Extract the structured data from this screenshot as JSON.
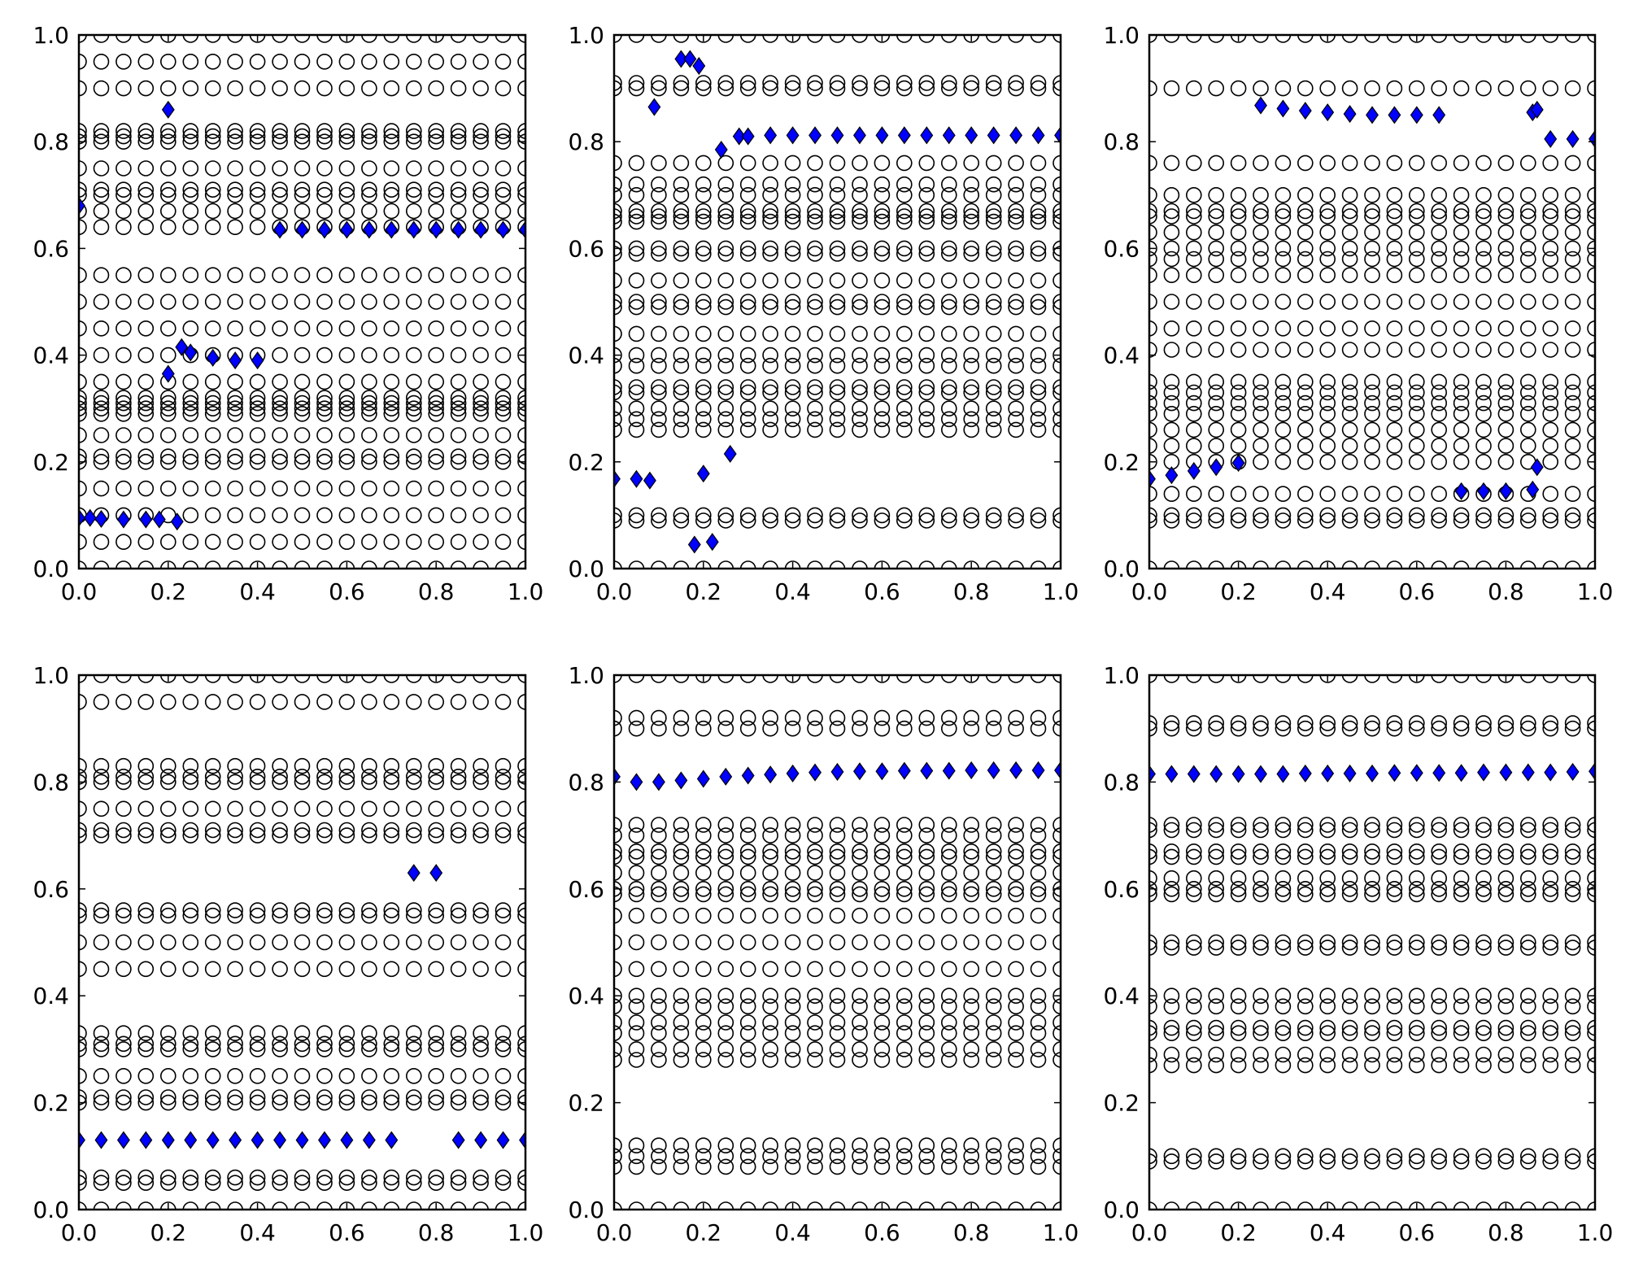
{
  "colors": {
    "hollow_marker_edge": "#000000",
    "diamond_fill": "#0000ff",
    "diamond_edge": "#000000",
    "axes": "#000000",
    "background": "#ffffff"
  },
  "chart_data": [
    {
      "type": "scatter",
      "panel": "top-left",
      "xlim": [
        0,
        1
      ],
      "ylim": [
        0,
        1
      ],
      "x_tick_labels": [
        "0.0",
        "0.2",
        "0.4",
        "0.6",
        "0.8",
        "1.0"
      ],
      "y_tick_labels": [
        "0.0",
        "0.2",
        "0.4",
        "0.6",
        "0.8",
        "1.0"
      ],
      "grid": false,
      "circle_x": [
        0.0,
        0.05,
        0.1,
        0.15,
        0.2,
        0.25,
        0.3,
        0.35,
        0.4,
        0.45,
        0.5,
        0.55,
        0.6,
        0.65,
        0.7,
        0.75,
        0.8,
        0.85,
        0.9,
        0.95,
        1.0
      ],
      "circle_y": [
        0.0,
        0.05,
        0.1,
        0.15,
        0.2,
        0.21,
        0.25,
        0.29,
        0.3,
        0.31,
        0.32,
        0.35,
        0.4,
        0.45,
        0.5,
        0.55,
        0.64,
        0.67,
        0.7,
        0.71,
        0.75,
        0.8,
        0.81,
        0.82,
        0.9,
        0.95,
        1.0
      ],
      "diamonds": [
        {
          "x": 0.0,
          "y": 0.68
        },
        {
          "x": 0.0,
          "y": 0.095
        },
        {
          "x": 0.025,
          "y": 0.095
        },
        {
          "x": 0.05,
          "y": 0.093
        },
        {
          "x": 0.1,
          "y": 0.092
        },
        {
          "x": 0.15,
          "y": 0.092
        },
        {
          "x": 0.18,
          "y": 0.092
        },
        {
          "x": 0.22,
          "y": 0.088
        },
        {
          "x": 0.2,
          "y": 0.365
        },
        {
          "x": 0.23,
          "y": 0.415
        },
        {
          "x": 0.25,
          "y": 0.405
        },
        {
          "x": 0.3,
          "y": 0.395
        },
        {
          "x": 0.35,
          "y": 0.39
        },
        {
          "x": 0.4,
          "y": 0.39
        },
        {
          "x": 0.2,
          "y": 0.86
        },
        {
          "x": 0.45,
          "y": 0.635
        },
        {
          "x": 0.5,
          "y": 0.635
        },
        {
          "x": 0.55,
          "y": 0.635
        },
        {
          "x": 0.6,
          "y": 0.635
        },
        {
          "x": 0.65,
          "y": 0.635
        },
        {
          "x": 0.7,
          "y": 0.635
        },
        {
          "x": 0.75,
          "y": 0.635
        },
        {
          "x": 0.8,
          "y": 0.635
        },
        {
          "x": 0.85,
          "y": 0.635
        },
        {
          "x": 0.9,
          "y": 0.635
        },
        {
          "x": 0.95,
          "y": 0.635
        },
        {
          "x": 1.0,
          "y": 0.635
        }
      ]
    },
    {
      "type": "scatter",
      "panel": "top-middle",
      "xlim": [
        0,
        1
      ],
      "ylim": [
        0,
        1
      ],
      "x_tick_labels": [
        "0.0",
        "0.2",
        "0.4",
        "0.6",
        "0.8",
        "1.0"
      ],
      "y_tick_labels": [
        "0.0",
        "0.2",
        "0.4",
        "0.6",
        "0.8",
        "1.0"
      ],
      "grid": false,
      "circle_x": [
        0.0,
        0.05,
        0.1,
        0.15,
        0.2,
        0.25,
        0.3,
        0.35,
        0.4,
        0.45,
        0.5,
        0.55,
        0.6,
        0.65,
        0.7,
        0.75,
        0.8,
        0.85,
        0.9,
        0.95,
        1.0
      ],
      "circle_y": [
        0.0,
        0.09,
        0.1,
        0.26,
        0.28,
        0.3,
        0.33,
        0.34,
        0.38,
        0.4,
        0.44,
        0.49,
        0.5,
        0.54,
        0.59,
        0.6,
        0.65,
        0.66,
        0.67,
        0.7,
        0.72,
        0.76,
        0.9,
        0.91,
        1.0
      ],
      "diamonds": [
        {
          "x": 0.0,
          "y": 0.168
        },
        {
          "x": 0.05,
          "y": 0.168
        },
        {
          "x": 0.08,
          "y": 0.165
        },
        {
          "x": 0.09,
          "y": 0.865
        },
        {
          "x": 0.15,
          "y": 0.955
        },
        {
          "x": 0.17,
          "y": 0.955
        },
        {
          "x": 0.19,
          "y": 0.942
        },
        {
          "x": 0.2,
          "y": 0.178
        },
        {
          "x": 0.18,
          "y": 0.045
        },
        {
          "x": 0.22,
          "y": 0.05
        },
        {
          "x": 0.26,
          "y": 0.215
        },
        {
          "x": 0.24,
          "y": 0.785
        },
        {
          "x": 0.28,
          "y": 0.81
        },
        {
          "x": 0.3,
          "y": 0.81
        },
        {
          "x": 0.35,
          "y": 0.812
        },
        {
          "x": 0.4,
          "y": 0.812
        },
        {
          "x": 0.45,
          "y": 0.812
        },
        {
          "x": 0.5,
          "y": 0.812
        },
        {
          "x": 0.55,
          "y": 0.812
        },
        {
          "x": 0.6,
          "y": 0.812
        },
        {
          "x": 0.65,
          "y": 0.812
        },
        {
          "x": 0.7,
          "y": 0.812
        },
        {
          "x": 0.75,
          "y": 0.812
        },
        {
          "x": 0.8,
          "y": 0.812
        },
        {
          "x": 0.85,
          "y": 0.812
        },
        {
          "x": 0.9,
          "y": 0.812
        },
        {
          "x": 0.95,
          "y": 0.812
        },
        {
          "x": 1.0,
          "y": 0.812
        }
      ]
    },
    {
      "type": "scatter",
      "panel": "top-right",
      "xlim": [
        0,
        1
      ],
      "ylim": [
        0,
        1
      ],
      "x_tick_labels": [
        "0.0",
        "0.2",
        "0.4",
        "0.6",
        "0.8",
        "1.0"
      ],
      "y_tick_labels": [
        "0.0",
        "0.2",
        "0.4",
        "0.6",
        "0.8",
        "1.0"
      ],
      "grid": false,
      "circle_x": [
        0.0,
        0.05,
        0.1,
        0.15,
        0.2,
        0.25,
        0.3,
        0.35,
        0.4,
        0.45,
        0.5,
        0.55,
        0.6,
        0.65,
        0.7,
        0.75,
        0.8,
        0.85,
        0.9,
        0.95,
        1.0
      ],
      "circle_y": [
        0.0,
        0.09,
        0.1,
        0.14,
        0.2,
        0.23,
        0.26,
        0.29,
        0.31,
        0.33,
        0.35,
        0.41,
        0.45,
        0.5,
        0.55,
        0.58,
        0.6,
        0.63,
        0.66,
        0.67,
        0.7,
        0.76,
        0.9,
        1.0
      ],
      "diamonds": [
        {
          "x": 0.0,
          "y": 0.168
        },
        {
          "x": 0.05,
          "y": 0.175
        },
        {
          "x": 0.1,
          "y": 0.183
        },
        {
          "x": 0.15,
          "y": 0.19
        },
        {
          "x": 0.2,
          "y": 0.198
        },
        {
          "x": 0.25,
          "y": 0.868
        },
        {
          "x": 0.3,
          "y": 0.862
        },
        {
          "x": 0.35,
          "y": 0.858
        },
        {
          "x": 0.4,
          "y": 0.855
        },
        {
          "x": 0.45,
          "y": 0.852
        },
        {
          "x": 0.5,
          "y": 0.85
        },
        {
          "x": 0.55,
          "y": 0.85
        },
        {
          "x": 0.6,
          "y": 0.85
        },
        {
          "x": 0.65,
          "y": 0.85
        },
        {
          "x": 0.7,
          "y": 0.145
        },
        {
          "x": 0.75,
          "y": 0.145
        },
        {
          "x": 0.8,
          "y": 0.145
        },
        {
          "x": 0.86,
          "y": 0.148
        },
        {
          "x": 0.87,
          "y": 0.19
        },
        {
          "x": 0.86,
          "y": 0.855
        },
        {
          "x": 0.87,
          "y": 0.86
        },
        {
          "x": 0.9,
          "y": 0.805
        },
        {
          "x": 0.95,
          "y": 0.805
        },
        {
          "x": 1.0,
          "y": 0.805
        }
      ]
    },
    {
      "type": "scatter",
      "panel": "bottom-left",
      "xlim": [
        0,
        1
      ],
      "ylim": [
        0,
        1
      ],
      "x_tick_labels": [
        "0.0",
        "0.2",
        "0.4",
        "0.6",
        "0.8",
        "1.0"
      ],
      "y_tick_labels": [
        "0.0",
        "0.2",
        "0.4",
        "0.6",
        "0.8",
        "1.0"
      ],
      "grid": false,
      "circle_x": [
        0.0,
        0.05,
        0.1,
        0.15,
        0.2,
        0.25,
        0.3,
        0.35,
        0.4,
        0.45,
        0.5,
        0.55,
        0.6,
        0.65,
        0.7,
        0.75,
        0.8,
        0.85,
        0.9,
        0.95,
        1.0
      ],
      "circle_y": [
        0.0,
        0.05,
        0.06,
        0.2,
        0.21,
        0.25,
        0.3,
        0.31,
        0.33,
        0.45,
        0.5,
        0.55,
        0.56,
        0.7,
        0.71,
        0.75,
        0.8,
        0.81,
        0.83,
        0.95,
        1.0
      ],
      "diamonds": [
        {
          "x": 0.0,
          "y": 0.13
        },
        {
          "x": 0.05,
          "y": 0.13
        },
        {
          "x": 0.1,
          "y": 0.13
        },
        {
          "x": 0.15,
          "y": 0.13
        },
        {
          "x": 0.2,
          "y": 0.13
        },
        {
          "x": 0.25,
          "y": 0.13
        },
        {
          "x": 0.3,
          "y": 0.13
        },
        {
          "x": 0.35,
          "y": 0.13
        },
        {
          "x": 0.4,
          "y": 0.13
        },
        {
          "x": 0.45,
          "y": 0.13
        },
        {
          "x": 0.5,
          "y": 0.13
        },
        {
          "x": 0.55,
          "y": 0.13
        },
        {
          "x": 0.6,
          "y": 0.13
        },
        {
          "x": 0.65,
          "y": 0.13
        },
        {
          "x": 0.7,
          "y": 0.13
        },
        {
          "x": 0.75,
          "y": 0.63
        },
        {
          "x": 0.8,
          "y": 0.63
        },
        {
          "x": 0.85,
          "y": 0.13
        },
        {
          "x": 0.9,
          "y": 0.13
        },
        {
          "x": 0.95,
          "y": 0.13
        },
        {
          "x": 1.0,
          "y": 0.13
        }
      ]
    },
    {
      "type": "scatter",
      "panel": "bottom-middle",
      "xlim": [
        0,
        1
      ],
      "ylim": [
        0,
        1
      ],
      "x_tick_labels": [
        "0.0",
        "0.2",
        "0.4",
        "0.6",
        "0.8",
        "1.0"
      ],
      "y_tick_labels": [
        "0.0",
        "0.2",
        "0.4",
        "0.6",
        "0.8",
        "1.0"
      ],
      "grid": false,
      "circle_x": [
        0.0,
        0.05,
        0.1,
        0.15,
        0.2,
        0.25,
        0.3,
        0.35,
        0.4,
        0.45,
        0.5,
        0.55,
        0.6,
        0.65,
        0.7,
        0.75,
        0.8,
        0.85,
        0.9,
        0.95,
        1.0
      ],
      "circle_y": [
        0.0,
        0.08,
        0.1,
        0.12,
        0.28,
        0.3,
        0.33,
        0.35,
        0.38,
        0.4,
        0.45,
        0.5,
        0.55,
        0.59,
        0.6,
        0.63,
        0.66,
        0.67,
        0.7,
        0.72,
        0.9,
        0.92,
        1.0
      ],
      "diamonds": [
        {
          "x": 0.0,
          "y": 0.81
        },
        {
          "x": 0.05,
          "y": 0.8
        },
        {
          "x": 0.1,
          "y": 0.8
        },
        {
          "x": 0.15,
          "y": 0.803
        },
        {
          "x": 0.2,
          "y": 0.806
        },
        {
          "x": 0.25,
          "y": 0.81
        },
        {
          "x": 0.3,
          "y": 0.812
        },
        {
          "x": 0.35,
          "y": 0.814
        },
        {
          "x": 0.4,
          "y": 0.816
        },
        {
          "x": 0.45,
          "y": 0.818
        },
        {
          "x": 0.5,
          "y": 0.819
        },
        {
          "x": 0.55,
          "y": 0.82
        },
        {
          "x": 0.6,
          "y": 0.82
        },
        {
          "x": 0.65,
          "y": 0.821
        },
        {
          "x": 0.7,
          "y": 0.821
        },
        {
          "x": 0.75,
          "y": 0.821
        },
        {
          "x": 0.8,
          "y": 0.822
        },
        {
          "x": 0.85,
          "y": 0.822
        },
        {
          "x": 0.9,
          "y": 0.822
        },
        {
          "x": 0.95,
          "y": 0.822
        },
        {
          "x": 1.0,
          "y": 0.822
        }
      ]
    },
    {
      "type": "scatter",
      "panel": "bottom-right",
      "xlim": [
        0,
        1
      ],
      "ylim": [
        0,
        1
      ],
      "x_tick_labels": [
        "0.0",
        "0.2",
        "0.4",
        "0.6",
        "0.8",
        "1.0"
      ],
      "y_tick_labels": [
        "0.0",
        "0.2",
        "0.4",
        "0.6",
        "0.8",
        "1.0"
      ],
      "grid": false,
      "circle_x": [
        0.0,
        0.05,
        0.1,
        0.15,
        0.2,
        0.25,
        0.3,
        0.35,
        0.4,
        0.45,
        0.5,
        0.55,
        0.6,
        0.65,
        0.7,
        0.75,
        0.8,
        0.85,
        0.9,
        0.95,
        1.0
      ],
      "circle_y": [
        0.0,
        0.09,
        0.1,
        0.27,
        0.29,
        0.33,
        0.34,
        0.38,
        0.4,
        0.49,
        0.5,
        0.59,
        0.6,
        0.62,
        0.66,
        0.67,
        0.71,
        0.72,
        0.9,
        0.91,
        1.0
      ],
      "diamonds": [
        {
          "x": 0.0,
          "y": 0.815
        },
        {
          "x": 0.05,
          "y": 0.815
        },
        {
          "x": 0.1,
          "y": 0.815
        },
        {
          "x": 0.15,
          "y": 0.815
        },
        {
          "x": 0.2,
          "y": 0.815
        },
        {
          "x": 0.25,
          "y": 0.815
        },
        {
          "x": 0.3,
          "y": 0.815
        },
        {
          "x": 0.35,
          "y": 0.816
        },
        {
          "x": 0.4,
          "y": 0.816
        },
        {
          "x": 0.45,
          "y": 0.816
        },
        {
          "x": 0.5,
          "y": 0.816
        },
        {
          "x": 0.55,
          "y": 0.817
        },
        {
          "x": 0.6,
          "y": 0.817
        },
        {
          "x": 0.65,
          "y": 0.817
        },
        {
          "x": 0.7,
          "y": 0.817
        },
        {
          "x": 0.75,
          "y": 0.818
        },
        {
          "x": 0.8,
          "y": 0.818
        },
        {
          "x": 0.85,
          "y": 0.818
        },
        {
          "x": 0.9,
          "y": 0.818
        },
        {
          "x": 0.95,
          "y": 0.819
        },
        {
          "x": 1.0,
          "y": 0.82
        }
      ]
    }
  ]
}
